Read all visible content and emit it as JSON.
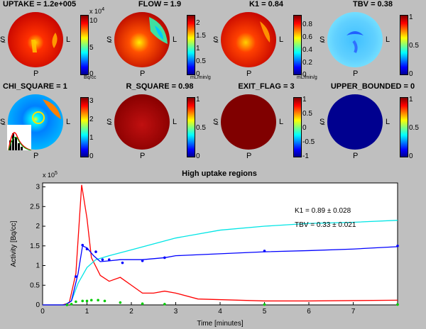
{
  "panels": [
    {
      "title": "UPTAKE = 1.2e+005",
      "ticks": [
        "10",
        "5",
        "0"
      ],
      "exp": "x 10",
      "exp_sup": "4",
      "unit": "Bq/cc",
      "s": "S",
      "l": "L",
      "p": "P"
    },
    {
      "title": "FLOW = 1.9",
      "ticks": [
        "2",
        "1.5",
        "1",
        "0.5",
        "0"
      ],
      "unit": "mL/min/g",
      "s": "S",
      "l": "L",
      "p": "P"
    },
    {
      "title": "K1 = 0.84",
      "ticks": [
        "0.8",
        "0.6",
        "0.4",
        "0.2",
        "0"
      ],
      "unit": "mL/min/g",
      "s": "S",
      "l": "L",
      "p": "P"
    },
    {
      "title": "TBV = 0.38",
      "ticks": [
        "1",
        "0.5",
        "0"
      ],
      "s": "S",
      "l": "L",
      "p": "P"
    },
    {
      "title": "CHI_SQUARE = 1",
      "ticks": [
        "3",
        "2",
        "1",
        "0"
      ],
      "s": "S",
      "l": "L",
      "p": "P"
    },
    {
      "title": "R_SQUARE = 0.98",
      "ticks": [
        "1",
        "0.5",
        "0"
      ],
      "s": "S",
      "l": "L",
      "p": "P"
    },
    {
      "title": "EXIT_FLAG = 3",
      "ticks": [
        "1",
        "0.5",
        "0",
        "-0.5",
        "-1"
      ],
      "s": "S",
      "l": "L",
      "p": "P"
    },
    {
      "title": "UPPER_BOUNDED = 0",
      "ticks": [
        "1",
        "0.5",
        "0"
      ],
      "s": "S",
      "l": "L",
      "p": "P"
    }
  ],
  "chart_data": {
    "type": "line",
    "title": "High uptake regions",
    "xlabel": "Time [minutes]",
    "ylabel": "Activity [Bq/cc]",
    "y_exponent": "x 10",
    "y_exponent_sup": "5",
    "xlim": [
      0,
      8
    ],
    "ylim": [
      0,
      3.1
    ],
    "x_ticks": [
      "0",
      "1",
      "2",
      "3",
      "4",
      "5",
      "6",
      "7"
    ],
    "y_ticks": [
      "0",
      "0.5",
      "1",
      "1.5",
      "2",
      "2.5",
      "3"
    ],
    "annotations": [
      "K1 = 0.89 ± 0.028",
      "TBV = 0.33 ± 0.021"
    ],
    "series": [
      {
        "color": "#ff0000",
        "x": [
          0,
          0.45,
          0.6,
          0.75,
          0.88,
          1.0,
          1.1,
          1.3,
          1.5,
          1.75,
          2.0,
          2.25,
          2.5,
          2.75,
          3.0,
          3.5,
          5.0,
          6.0,
          8.0
        ],
        "y": [
          0,
          0.0,
          0.05,
          0.8,
          3.05,
          2.2,
          1.2,
          0.75,
          0.6,
          0.7,
          0.5,
          0.3,
          0.3,
          0.35,
          0.3,
          0.15,
          0.1,
          0.1,
          0.12
        ]
      },
      {
        "color": "#00e5e5",
        "x": [
          0,
          0.5,
          0.65,
          0.8,
          1.0,
          1.2,
          1.5,
          2.0,
          2.5,
          3.0,
          3.5,
          4.0,
          5.0,
          6.0,
          7.0,
          8.0
        ],
        "y": [
          0,
          0.0,
          0.1,
          0.55,
          0.95,
          1.15,
          1.25,
          1.4,
          1.55,
          1.7,
          1.8,
          1.9,
          2.0,
          2.07,
          2.1,
          2.15
        ]
      },
      {
        "color": "#0000ff",
        "x": [
          0,
          0.5,
          0.65,
          0.8,
          0.9,
          1.0,
          1.15,
          1.3,
          1.5,
          1.75,
          2.25,
          2.75,
          3.0,
          4.0,
          5.0,
          6.0,
          7.0,
          8.0
        ],
        "y": [
          0,
          0.0,
          0.1,
          0.8,
          1.5,
          1.45,
          1.25,
          1.1,
          1.12,
          1.15,
          1.15,
          1.2,
          1.25,
          1.3,
          1.35,
          1.38,
          1.42,
          1.48
        ]
      },
      {
        "color": "#0000ff",
        "kind": "points",
        "x": [
          0.75,
          0.9,
          1.0,
          1.2,
          1.35,
          1.5,
          1.8,
          2.25,
          2.75,
          5.0,
          8.0
        ],
        "y": [
          0.72,
          1.52,
          1.42,
          1.35,
          1.15,
          1.15,
          1.07,
          1.12,
          1.2,
          1.37,
          1.5
        ]
      },
      {
        "color": "#00cc00",
        "kind": "points",
        "x": [
          0.55,
          0.65,
          0.75,
          0.9,
          1.0,
          1.1,
          1.25,
          1.4,
          1.75,
          2.25,
          2.75,
          5.0,
          8.0
        ],
        "y": [
          0.0,
          0.02,
          0.08,
          0.1,
          0.1,
          0.12,
          0.12,
          0.1,
          0.06,
          0.03,
          0.02,
          0.01,
          0.01
        ]
      }
    ]
  }
}
